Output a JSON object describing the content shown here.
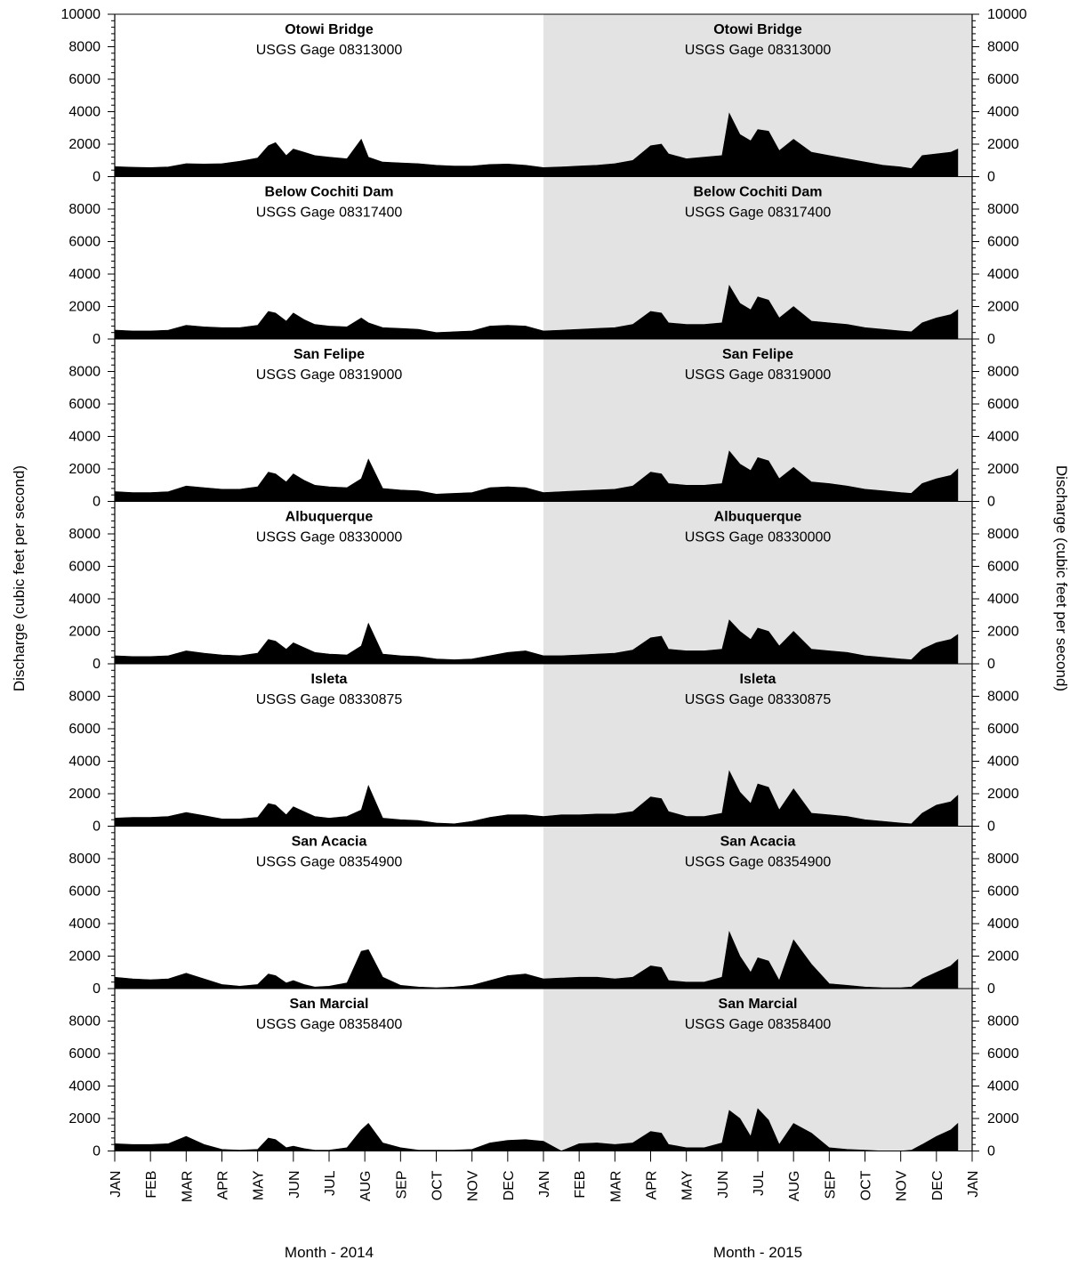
{
  "chart_data": {
    "type": "area",
    "ylabel": "Discharge (cubic feet per second)",
    "ylim": [
      0,
      10000
    ],
    "yticks": [
      0,
      2000,
      4000,
      6000,
      8000,
      10000
    ],
    "years": [
      {
        "xlabel": "Month - 2014",
        "shaded": false
      },
      {
        "xlabel": "Month - 2015",
        "shaded": true
      }
    ],
    "month_ticks": [
      "JAN",
      "FEB",
      "MAR",
      "APR",
      "MAY",
      "JUN",
      "JUL",
      "AUG",
      "SEP",
      "OCT",
      "NOV",
      "DEC",
      "JAN",
      "FEB",
      "MAR",
      "APR",
      "MAY",
      "JUN",
      "JUL",
      "AUG",
      "SEP",
      "OCT",
      "NOV",
      "DEC",
      "JAN"
    ],
    "x_unit": "month index from January 1, 2014 (0 to 24)",
    "panels": [
      {
        "station": "Otowi Bridge",
        "gage": "USGS Gage 08313000",
        "x": [
          0,
          0.5,
          1,
          1.5,
          2,
          2.5,
          3,
          3.5,
          4,
          4.3,
          4.5,
          4.8,
          5,
          5.3,
          5.6,
          6,
          6.5,
          6.9,
          7.1,
          7.5,
          8,
          8.5,
          9,
          9.5,
          10,
          10.5,
          11,
          11.5,
          12,
          12.5,
          13,
          13.5,
          14,
          14.5,
          15,
          15.3,
          15.5,
          16,
          16.5,
          17,
          17.2,
          17.5,
          17.8,
          18,
          18.3,
          18.6,
          19,
          19.5,
          20,
          20.5,
          21,
          21.5,
          22,
          22.3,
          22.6,
          23,
          23.4,
          23.6
        ],
        "values": [
          620,
          580,
          560,
          600,
          800,
          780,
          800,
          950,
          1150,
          1900,
          2100,
          1300,
          1700,
          1500,
          1300,
          1200,
          1100,
          2300,
          1200,
          900,
          850,
          800,
          700,
          650,
          650,
          750,
          780,
          700,
          560,
          600,
          650,
          700,
          800,
          1000,
          1900,
          2000,
          1400,
          1100,
          1200,
          1300,
          3900,
          2600,
          2200,
          2900,
          2800,
          1600,
          2300,
          1500,
          1300,
          1100,
          900,
          700,
          600,
          500,
          1300,
          1400,
          1500,
          1700
        ]
      },
      {
        "station": "Below Cochiti Dam",
        "gage": "USGS Gage 08317400",
        "x": [
          0,
          0.5,
          1,
          1.5,
          2,
          2.5,
          3,
          3.5,
          4,
          4.3,
          4.5,
          4.8,
          5,
          5.3,
          5.6,
          6,
          6.5,
          6.9,
          7.1,
          7.5,
          8,
          8.5,
          9,
          9.5,
          10,
          10.5,
          11,
          11.5,
          12,
          12.5,
          13,
          13.5,
          14,
          14.5,
          15,
          15.3,
          15.5,
          16,
          16.5,
          17,
          17.2,
          17.5,
          17.8,
          18,
          18.3,
          18.6,
          19,
          19.5,
          20,
          20.5,
          21,
          21.5,
          22,
          22.3,
          22.6,
          23,
          23.4,
          23.6
        ],
        "values": [
          550,
          500,
          500,
          550,
          850,
          750,
          700,
          700,
          850,
          1700,
          1600,
          1100,
          1600,
          1200,
          900,
          800,
          750,
          1300,
          1000,
          700,
          650,
          600,
          400,
          450,
          500,
          800,
          850,
          800,
          500,
          550,
          600,
          650,
          700,
          900,
          1700,
          1600,
          1000,
          900,
          900,
          1000,
          3300,
          2200,
          1800,
          2600,
          2400,
          1300,
          2000,
          1100,
          1000,
          900,
          700,
          600,
          500,
          450,
          1000,
          1300,
          1500,
          1800
        ]
      },
      {
        "station": "San Felipe",
        "gage": "USGS Gage 08319000",
        "x": [
          0,
          0.5,
          1,
          1.5,
          2,
          2.5,
          3,
          3.5,
          4,
          4.3,
          4.5,
          4.8,
          5,
          5.3,
          5.6,
          6,
          6.5,
          6.9,
          7.1,
          7.5,
          8,
          8.5,
          9,
          9.5,
          10,
          10.5,
          11,
          11.5,
          12,
          12.5,
          13,
          13.5,
          14,
          14.5,
          15,
          15.3,
          15.5,
          16,
          16.5,
          17,
          17.2,
          17.5,
          17.8,
          18,
          18.3,
          18.6,
          19,
          19.5,
          20,
          20.5,
          21,
          21.5,
          22,
          22.3,
          22.6,
          23,
          23.4,
          23.6
        ],
        "values": [
          600,
          550,
          550,
          600,
          950,
          850,
          750,
          750,
          900,
          1800,
          1700,
          1200,
          1700,
          1300,
          1000,
          900,
          850,
          1400,
          2600,
          800,
          700,
          650,
          450,
          500,
          550,
          850,
          900,
          850,
          550,
          600,
          650,
          700,
          750,
          950,
          1800,
          1700,
          1100,
          1000,
          1000,
          1100,
          3100,
          2300,
          1900,
          2700,
          2500,
          1400,
          2100,
          1200,
          1100,
          950,
          750,
          650,
          550,
          500,
          1100,
          1400,
          1600,
          2000
        ]
      },
      {
        "station": "Albuquerque",
        "gage": "USGS Gage 08330000",
        "x": [
          0,
          0.5,
          1,
          1.5,
          2,
          2.5,
          3,
          3.5,
          4,
          4.3,
          4.5,
          4.8,
          5,
          5.3,
          5.6,
          6,
          6.5,
          6.9,
          7.1,
          7.5,
          8,
          8.5,
          9,
          9.5,
          10,
          10.5,
          11,
          11.5,
          12,
          12.5,
          13,
          13.5,
          14,
          14.5,
          15,
          15.3,
          15.5,
          16,
          16.5,
          17,
          17.2,
          17.5,
          17.8,
          18,
          18.3,
          18.6,
          19,
          19.5,
          20,
          20.5,
          21,
          21.5,
          22,
          22.3,
          22.6,
          23,
          23.4,
          23.6
        ],
        "values": [
          500,
          450,
          450,
          500,
          800,
          650,
          550,
          500,
          650,
          1500,
          1400,
          900,
          1300,
          1000,
          700,
          600,
          550,
          1100,
          2500,
          600,
          500,
          450,
          300,
          250,
          300,
          500,
          700,
          800,
          500,
          500,
          550,
          600,
          650,
          850,
          1600,
          1700,
          900,
          800,
          800,
          900,
          2700,
          2000,
          1500,
          2200,
          2000,
          1100,
          2000,
          900,
          800,
          700,
          500,
          400,
          300,
          250,
          900,
          1300,
          1500,
          1800
        ]
      },
      {
        "station": "Isleta",
        "gage": "USGS Gage 08330875",
        "x": [
          0,
          0.5,
          1,
          1.5,
          2,
          2.5,
          3,
          3.5,
          4,
          4.3,
          4.5,
          4.8,
          5,
          5.3,
          5.6,
          6,
          6.5,
          6.9,
          7.1,
          7.5,
          8,
          8.5,
          9,
          9.5,
          10,
          10.5,
          11,
          11.5,
          12,
          12.5,
          13,
          13.5,
          14,
          14.5,
          15,
          15.3,
          15.5,
          16,
          16.5,
          17,
          17.2,
          17.5,
          17.8,
          18,
          18.3,
          18.6,
          19,
          19.5,
          20,
          20.5,
          21,
          21.5,
          22,
          22.3,
          22.6,
          23,
          23.4,
          23.6
        ],
        "values": [
          500,
          550,
          550,
          600,
          850,
          650,
          450,
          450,
          550,
          1400,
          1300,
          700,
          1200,
          900,
          600,
          500,
          600,
          1000,
          2500,
          500,
          400,
          350,
          200,
          150,
          300,
          550,
          700,
          700,
          600,
          700,
          700,
          750,
          750,
          900,
          1800,
          1700,
          900,
          600,
          600,
          800,
          3400,
          2100,
          1400,
          2600,
          2400,
          1000,
          2300,
          800,
          700,
          600,
          400,
          300,
          200,
          150,
          800,
          1300,
          1500,
          1900
        ]
      },
      {
        "station": "San Acacia",
        "gage": "USGS Gage 08354900",
        "x": [
          0,
          0.5,
          1,
          1.5,
          2,
          2.5,
          3,
          3.5,
          4,
          4.3,
          4.5,
          4.8,
          5,
          5.3,
          5.6,
          6,
          6.5,
          6.9,
          7.1,
          7.5,
          8,
          8.5,
          9,
          9.5,
          10,
          10.5,
          11,
          11.5,
          12,
          12.5,
          13,
          13.5,
          14,
          14.5,
          15,
          15.3,
          15.5,
          16,
          16.5,
          17,
          17.2,
          17.5,
          17.8,
          18,
          18.3,
          18.6,
          19,
          19.5,
          20,
          20.5,
          21,
          21.5,
          22,
          22.3,
          22.6,
          23,
          23.4,
          23.6
        ],
        "values": [
          700,
          600,
          550,
          600,
          950,
          600,
          250,
          150,
          250,
          900,
          800,
          350,
          500,
          250,
          100,
          150,
          350,
          2300,
          2400,
          700,
          200,
          100,
          50,
          100,
          200,
          500,
          800,
          900,
          600,
          650,
          700,
          700,
          600,
          700,
          1400,
          1300,
          500,
          400,
          400,
          700,
          3500,
          2000,
          1000,
          1900,
          1700,
          500,
          3000,
          1500,
          300,
          200,
          100,
          50,
          50,
          100,
          600,
          1000,
          1400,
          1800
        ]
      },
      {
        "station": "San Marcial",
        "gage": "USGS Gage 08358400",
        "x": [
          0,
          0.5,
          1,
          1.5,
          2,
          2.5,
          3,
          3.5,
          4,
          4.3,
          4.5,
          4.8,
          5,
          5.3,
          5.6,
          6,
          6.5,
          6.9,
          7.1,
          7.5,
          8,
          8.5,
          9,
          9.5,
          10,
          10.5,
          11,
          11.5,
          12,
          12.5,
          13,
          13.5,
          14,
          14.5,
          15,
          15.3,
          15.5,
          16,
          16.5,
          17,
          17.2,
          17.5,
          17.8,
          18,
          18.3,
          18.6,
          19,
          19.5,
          20,
          20.5,
          21,
          21.5,
          22,
          22.3,
          22.6,
          23,
          23.4,
          23.6
        ],
        "values": [
          450,
          400,
          400,
          450,
          900,
          400,
          100,
          50,
          100,
          800,
          700,
          200,
          300,
          150,
          50,
          50,
          200,
          1300,
          1700,
          500,
          200,
          50,
          50,
          50,
          100,
          500,
          650,
          700,
          600,
          0,
          450,
          500,
          400,
          500,
          1200,
          1100,
          400,
          200,
          200,
          500,
          2500,
          2000,
          900,
          2600,
          1900,
          400,
          1700,
          1100,
          200,
          100,
          50,
          0,
          0,
          50,
          400,
          900,
          1300,
          1700
        ]
      }
    ]
  }
}
